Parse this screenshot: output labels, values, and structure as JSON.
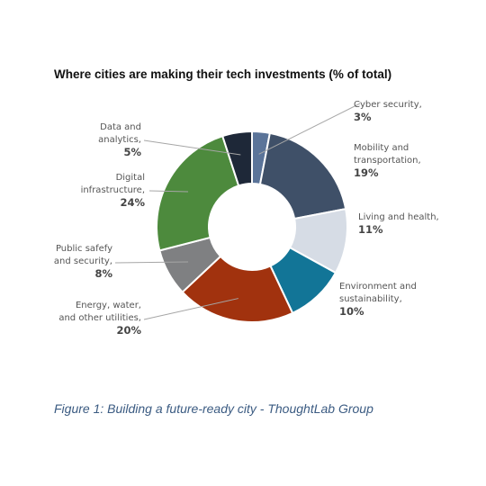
{
  "chart_data": {
    "type": "pie",
    "style": "donut",
    "title": "Where cities are making their tech investments (% of total)",
    "categories": [
      "Cyber security",
      "Mobility and transportation",
      "Living and health",
      "Environment and sustainability",
      "Energy, water, and other utilities",
      "Public safefy and security",
      "Digital infrastructure",
      "Data and analytics"
    ],
    "values": [
      3,
      19,
      11,
      10,
      20,
      8,
      24,
      5
    ],
    "labels": [
      {
        "lines": [
          "Cyber security,"
        ],
        "pct": "3%"
      },
      {
        "lines": [
          "Mobility and",
          "transportation,"
        ],
        "pct": "19%"
      },
      {
        "lines": [
          "Living and health,"
        ],
        "pct": "11%"
      },
      {
        "lines": [
          "Environment and",
          "sustainability,"
        ],
        "pct": "10%"
      },
      {
        "lines": [
          "Energy, water,",
          "and other utilities,"
        ],
        "pct": "20%"
      },
      {
        "lines": [
          "Public safefy",
          "and security,"
        ],
        "pct": "8%"
      },
      {
        "lines": [
          "Digital",
          "infrastructure,"
        ],
        "pct": "24%"
      },
      {
        "lines": [
          "Data and",
          "analytics,"
        ],
        "pct": "5%"
      }
    ],
    "colors": [
      "#5b7499",
      "#3f5068",
      "#d6dce5",
      "#127597",
      "#a1320e",
      "#7f8082",
      "#4d8a3d",
      "#1e2838"
    ]
  },
  "caption": "Figure 1: Building a future-ready city - ThoughtLab Group"
}
